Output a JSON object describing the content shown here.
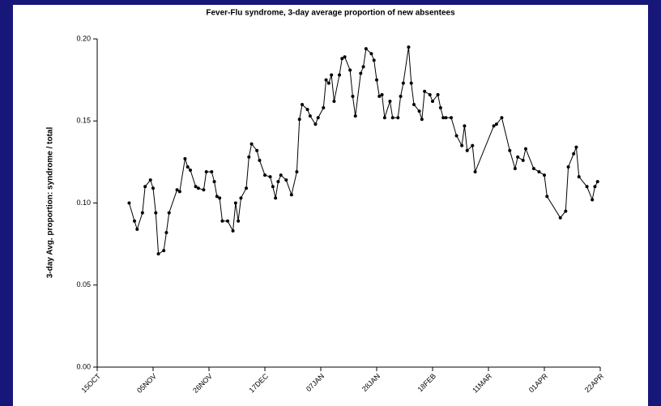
{
  "chart_data": {
    "type": "line",
    "title": "Fever-Flu syndrome, 3-day average proportion of new absentees",
    "y_label": "3-day Avg. proportion: syndrome / total",
    "color": "#000000",
    "x": [
      12,
      14,
      15,
      17,
      18,
      20,
      21,
      22,
      23,
      25,
      26,
      27,
      30,
      31,
      33,
      34,
      35,
      37,
      38,
      40,
      41,
      43,
      44,
      45,
      46,
      47,
      49,
      51,
      52,
      53,
      54,
      56,
      57,
      58,
      60,
      61,
      63,
      65,
      66,
      67,
      68,
      69,
      71,
      73,
      75,
      76,
      77,
      79,
      80,
      82,
      83,
      85,
      86,
      87,
      88,
      89,
      91,
      92,
      93,
      95,
      96,
      97,
      99,
      100,
      101,
      103,
      104,
      105,
      106,
      107,
      108,
      110,
      111,
      113,
      114,
      115,
      117,
      118,
      119,
      121,
      122,
      123,
      125,
      126,
      128,
      129,
      130,
      131,
      133,
      135,
      137,
      138,
      139,
      141,
      142,
      149,
      150,
      152,
      155,
      157,
      158,
      160,
      161,
      164,
      166,
      168,
      169,
      174,
      176,
      177,
      179,
      180,
      181,
      184,
      186,
      187,
      188
    ],
    "values": [
      0.1,
      0.089,
      0.084,
      0.094,
      0.11,
      0.114,
      0.109,
      0.094,
      0.069,
      0.071,
      0.082,
      0.094,
      0.108,
      0.107,
      0.127,
      0.122,
      0.12,
      0.11,
      0.109,
      0.108,
      0.119,
      0.119,
      0.113,
      0.104,
      0.103,
      0.089,
      0.089,
      0.083,
      0.1,
      0.089,
      0.103,
      0.109,
      0.128,
      0.136,
      0.132,
      0.126,
      0.117,
      0.116,
      0.11,
      0.103,
      0.113,
      0.117,
      0.114,
      0.105,
      0.119,
      0.151,
      0.16,
      0.157,
      0.153,
      0.148,
      0.152,
      0.158,
      0.175,
      0.173,
      0.178,
      0.162,
      0.178,
      0.188,
      0.189,
      0.181,
      0.165,
      0.153,
      0.179,
      0.183,
      0.194,
      0.191,
      0.187,
      0.175,
      0.165,
      0.166,
      0.152,
      0.162,
      0.152,
      0.152,
      0.165,
      0.173,
      0.195,
      0.173,
      0.16,
      0.156,
      0.151,
      0.168,
      0.166,
      0.162,
      0.166,
      0.158,
      0.152,
      0.152,
      0.152,
      0.141,
      0.135,
      0.147,
      0.132,
      0.135,
      0.119,
      0.147,
      0.148,
      0.152,
      0.132,
      0.121,
      0.128,
      0.126,
      0.133,
      0.121,
      0.119,
      0.117,
      0.104,
      0.091,
      0.095,
      0.122,
      0.13,
      0.134,
      0.116,
      0.11,
      0.102,
      0.11,
      0.113
    ],
    "xlim": [
      0,
      189
    ],
    "xticks": [
      {
        "value": 0,
        "label": "15OCT"
      },
      {
        "value": 21,
        "label": "05NOV"
      },
      {
        "value": 42,
        "label": "26NOV"
      },
      {
        "value": 63,
        "label": "17DEC"
      },
      {
        "value": 84,
        "label": "07JAN"
      },
      {
        "value": 105,
        "label": "28JAN"
      },
      {
        "value": 126,
        "label": "18FEB"
      },
      {
        "value": 147,
        "label": "11MAR"
      },
      {
        "value": 168,
        "label": "01APR"
      },
      {
        "value": 189,
        "label": "22APR"
      }
    ],
    "ylim": [
      0,
      0.2
    ],
    "yticks": [
      {
        "value": 0,
        "label": "0.00"
      },
      {
        "value": 0.05,
        "label": "0.05"
      },
      {
        "value": 0.1,
        "label": "0.10"
      },
      {
        "value": 0.15,
        "label": "0.15"
      },
      {
        "value": 0.2,
        "label": "0.20"
      }
    ]
  }
}
